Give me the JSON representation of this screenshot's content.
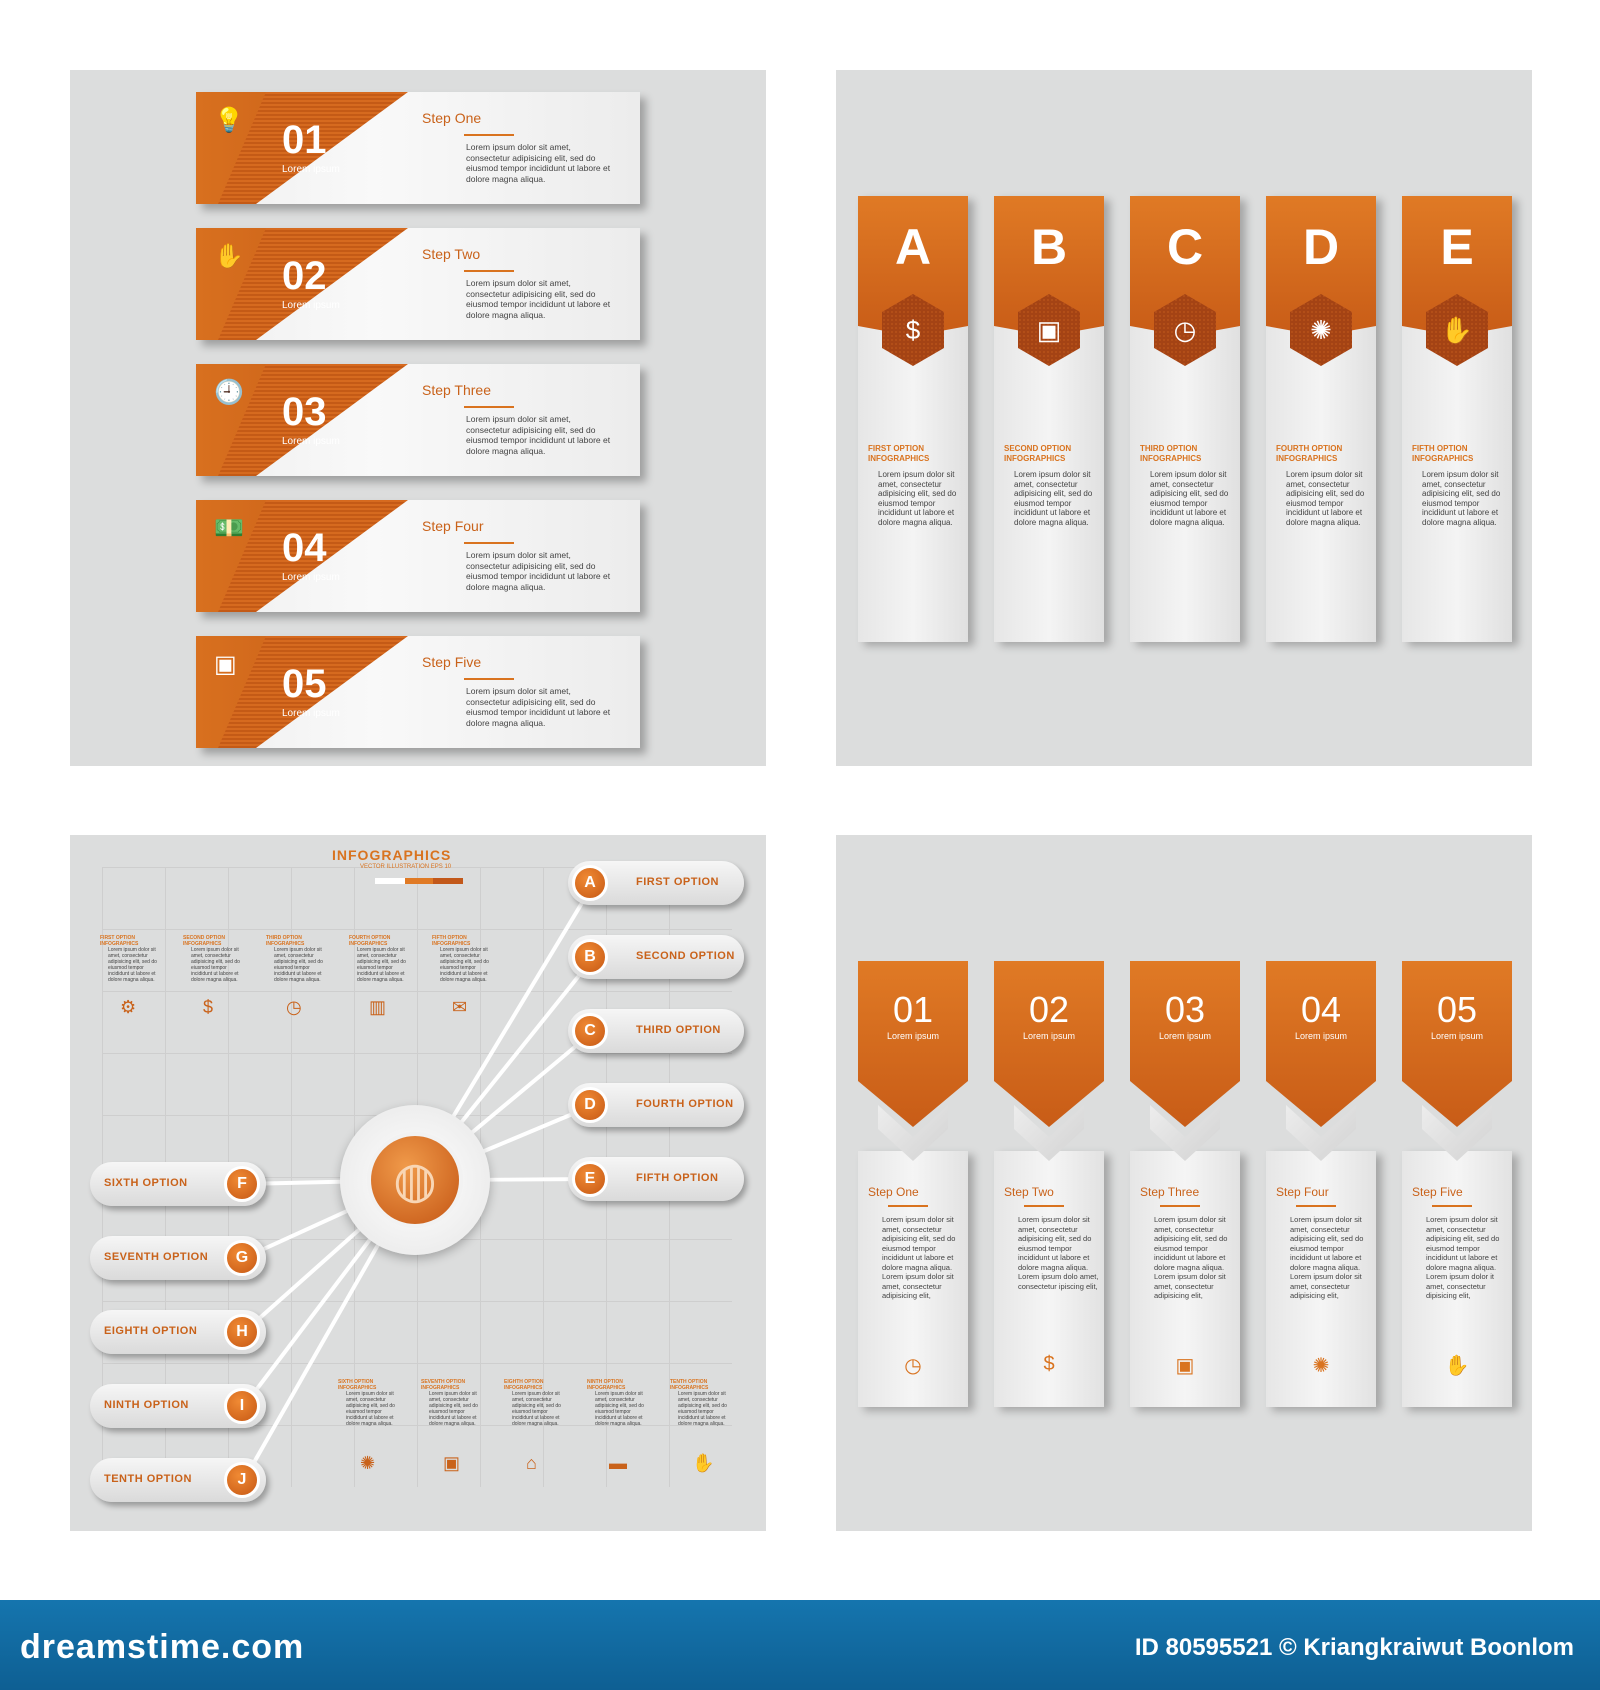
{
  "panel1": {
    "steps": [
      {
        "num": "01",
        "sub": "Lorem ipsum",
        "title": "Step One",
        "body": "Lorem ipsum dolor sit amet, consectetur adipisicing elit, sed do eiusmod tempor incididunt ut labore et dolore magna aliqua.",
        "icon": "lightbulb-icon",
        "glyph": "💡"
      },
      {
        "num": "02",
        "sub": "Lorem ipsum",
        "title": "Step Two",
        "body": "Lorem ipsum dolor sit amet, consectetur adipisicing elit, sed do eiusmod tempor incididunt ut labore et dolore magna aliqua.",
        "icon": "hand-money-icon",
        "glyph": "✋"
      },
      {
        "num": "03",
        "sub": "Lorem ipsum",
        "title": "Step Three",
        "body": "Lorem ipsum dolor sit amet, consectetur adipisicing elit, sed do eiusmod tempor incididunt ut labore et dolore magna aliqua.",
        "icon": "clock-icon",
        "glyph": "🕘"
      },
      {
        "num": "04",
        "sub": "Lorem ipsum",
        "title": "Step Four",
        "body": "Lorem ipsum dolor sit amet, consectetur adipisicing elit, sed do eiusmod tempor incididunt ut labore et dolore magna aliqua.",
        "icon": "banknote-icon",
        "glyph": "💵"
      },
      {
        "num": "05",
        "sub": "Lorem ipsum",
        "title": "Step Five",
        "body": "Lorem ipsum dolor sit amet, consectetur adipisicing elit, sed do eiusmod tempor incididunt ut labore et dolore magna aliqua.",
        "icon": "org-chart-icon",
        "glyph": "▣"
      }
    ]
  },
  "panel2": {
    "columns": [
      {
        "letter": "A",
        "option": "FIRST OPTION INFOGRAPHICS",
        "body": "Lorem ipsum dolor sit amet, consectetur adipisicing elit, sed do eiusmod tempor incididunt ut labore et dolore magna aliqua.",
        "icon": "banknote-icon",
        "glyph": "$"
      },
      {
        "letter": "B",
        "option": "SECOND OPTION INFOGRAPHICS",
        "body": "Lorem ipsum dolor sit amet, consectetur adipisicing elit, sed do eiusmod tempor incididunt ut labore et dolore magna aliqua.",
        "icon": "meeting-icon",
        "glyph": "▣"
      },
      {
        "letter": "C",
        "option": "THIRD OPTION INFOGRAPHICS",
        "body": "Lorem ipsum dolor sit amet, consectetur adipisicing elit, sed do eiusmod tempor incididunt ut labore et dolore magna aliqua.",
        "icon": "clock-icon",
        "glyph": "◷"
      },
      {
        "letter": "D",
        "option": "FOURTH OPTION INFOGRAPHICS",
        "body": "Lorem ipsum dolor sit amet, consectetur adipisicing elit, sed do eiusmod tempor incididunt ut labore et dolore magna aliqua.",
        "icon": "lightbulb-icon",
        "glyph": "✺"
      },
      {
        "letter": "E",
        "option": "FIFTH OPTION INFOGRAPHICS",
        "body": "Lorem ipsum dolor sit amet, consectetur adipisicing elit, sed do eiusmod tempor incididunt ut labore et dolore magna aliqua.",
        "icon": "hand-money-icon",
        "glyph": "✋"
      }
    ]
  },
  "panel3": {
    "title": "INFOGRAPHICS",
    "subtitle": "VECTOR ILLUSTRATION EPS 10",
    "top_minis": [
      {
        "head": "FIRST OPTION INFOGRAPHICS",
        "icon": "gear-icon",
        "glyph": "⚙"
      },
      {
        "head": "SECOND OPTION INFOGRAPHICS",
        "icon": "banknote-icon",
        "glyph": "$"
      },
      {
        "head": "THIRD OPTION INFOGRAPHICS",
        "icon": "clock-icon",
        "glyph": "◷"
      },
      {
        "head": "FOURTH OPTION INFOGRAPHICS",
        "icon": "bar-chart-icon",
        "glyph": "▥"
      },
      {
        "head": "FIFTH OPTION INFOGRAPHICS",
        "icon": "envelope-icon",
        "glyph": "✉"
      }
    ],
    "bottom_minis": [
      {
        "head": "SIXTH OPTION INFOGRAPHICS",
        "icon": "lightbulb-icon",
        "glyph": "✺"
      },
      {
        "head": "SEVENTH OPTION INFOGRAPHICS",
        "icon": "meeting-icon",
        "glyph": "▣"
      },
      {
        "head": "EIGHTH OPTION INFOGRAPHICS",
        "icon": "home-icon",
        "glyph": "⌂"
      },
      {
        "head": "NINTH OPTION INFOGRAPHICS",
        "icon": "chat-bubble-icon",
        "glyph": "▬"
      },
      {
        "head": "TENTH OPTION INFOGRAPHICS",
        "icon": "hand-money-icon",
        "glyph": "✋"
      }
    ],
    "mini_body": "Lorem ipsum dolor sit amet, consectetur adipisicing elit, sed do eiusmod tempor incididunt ut labore et dolore magna aliqua.",
    "right_options": [
      {
        "letter": "A",
        "label": "FIRST OPTION"
      },
      {
        "letter": "B",
        "label": "SECOND OPTION"
      },
      {
        "letter": "C",
        "label": "THIRD OPTION"
      },
      {
        "letter": "D",
        "label": "FOURTH OPTION"
      },
      {
        "letter": "E",
        "label": "FIFTH OPTION"
      }
    ],
    "left_options": [
      {
        "letter": "F",
        "label": "SIXTH OPTION"
      },
      {
        "letter": "G",
        "label": "SEVENTH OPTION"
      },
      {
        "letter": "H",
        "label": "EIGHTH OPTION"
      },
      {
        "letter": "I",
        "label": "NINTH OPTION"
      },
      {
        "letter": "J",
        "label": "TENTH OPTION"
      }
    ],
    "hub_icon": "globe-icon"
  },
  "panel4": {
    "columns": [
      {
        "num": "01",
        "sub": "Lorem ipsum",
        "step": "Step One",
        "body": "Lorem ipsum dolor sit amet, consectetur adipisicing elit, sed do eiusmod tempor incididunt ut labore et dolore magna aliqua. Lorem ipsum dolor sit amet, consectetur adipisicing elit,",
        "icon": "clock-icon",
        "glyph": "◷"
      },
      {
        "num": "02",
        "sub": "Lorem ipsum",
        "step": "Step Two",
        "body": "Lorem ipsum dolor sit amet, consectetur adipisicing elit, sed do eiusmod tempor incididunt ut labore et dolore magna aliqua. Lorem ipsum dolo amet, consectetur ipiscing elit,",
        "icon": "banknote-icon",
        "glyph": "$"
      },
      {
        "num": "03",
        "sub": "Lorem ipsum",
        "step": "Step Three",
        "body": "Lorem ipsum dolor sit amet, consectetur adipisicing elit, sed do eiusmod tempor incididunt ut labore et dolore magna aliqua. Lorem ipsum dolor sit amet, consectetur adipisicing elit,",
        "icon": "org-chart-icon",
        "glyph": "▣"
      },
      {
        "num": "04",
        "sub": "Lorem ipsum",
        "step": "Step Four",
        "body": "Lorem ipsum dolor sit amet, consectetur adipisicing elit, sed do eiusmod tempor incididunt ut labore et dolore magna aliqua. Lorem ipsum dolor sit amet, consectetur adipisicing elit,",
        "icon": "lightbulb-icon",
        "glyph": "✺"
      },
      {
        "num": "05",
        "sub": "Lorem ipsum",
        "step": "Step Five",
        "body": "Lorem ipsum dolor sit amet, consectetur adipisicing elit, sed do eiusmod tempor incididunt ut labore et dolore magna aliqua. Lorem ipsum dolor it amet, consectetur dipisicing elit,",
        "icon": "hand-money-icon",
        "glyph": "✋"
      }
    ]
  },
  "footer": {
    "brand": "dreamstime.com",
    "credit": "ID 80595521 © Kriangkraiwut Boonlom"
  },
  "colors": {
    "accent": "#d9731f",
    "accent_dark": "#c45a16",
    "panel_bg": "#dcdddd",
    "footer_bg": "#1575ae"
  }
}
